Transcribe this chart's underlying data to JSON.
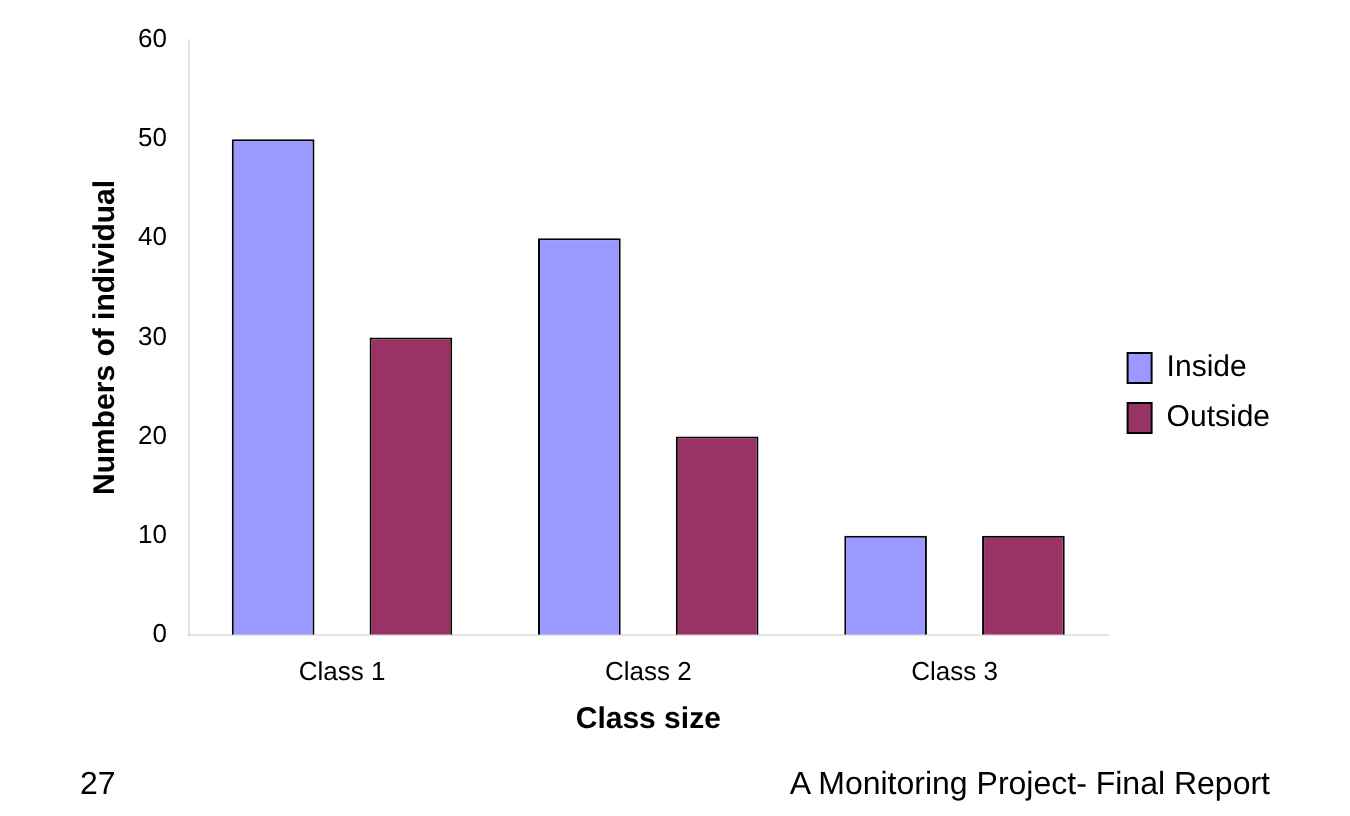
{
  "chart_data": {
    "type": "bar",
    "xlabel": "Class size",
    "ylabel": "Numbers of individual",
    "categories": [
      "Class 1",
      "Class 2",
      "Class 3"
    ],
    "series": [
      {
        "name": "Inside",
        "color": "#9999ff",
        "values": [
          50,
          40,
          10
        ]
      },
      {
        "name": "Outside",
        "color": "#993366",
        "values": [
          30,
          20,
          10
        ]
      }
    ],
    "ylim": [
      0,
      60
    ],
    "yticks": [
      0,
      10,
      20,
      30,
      40,
      50,
      60
    ],
    "grid": false,
    "legend": "right",
    "annotations": [
      "27",
      "A Monitoring Project- Final Report"
    ]
  }
}
